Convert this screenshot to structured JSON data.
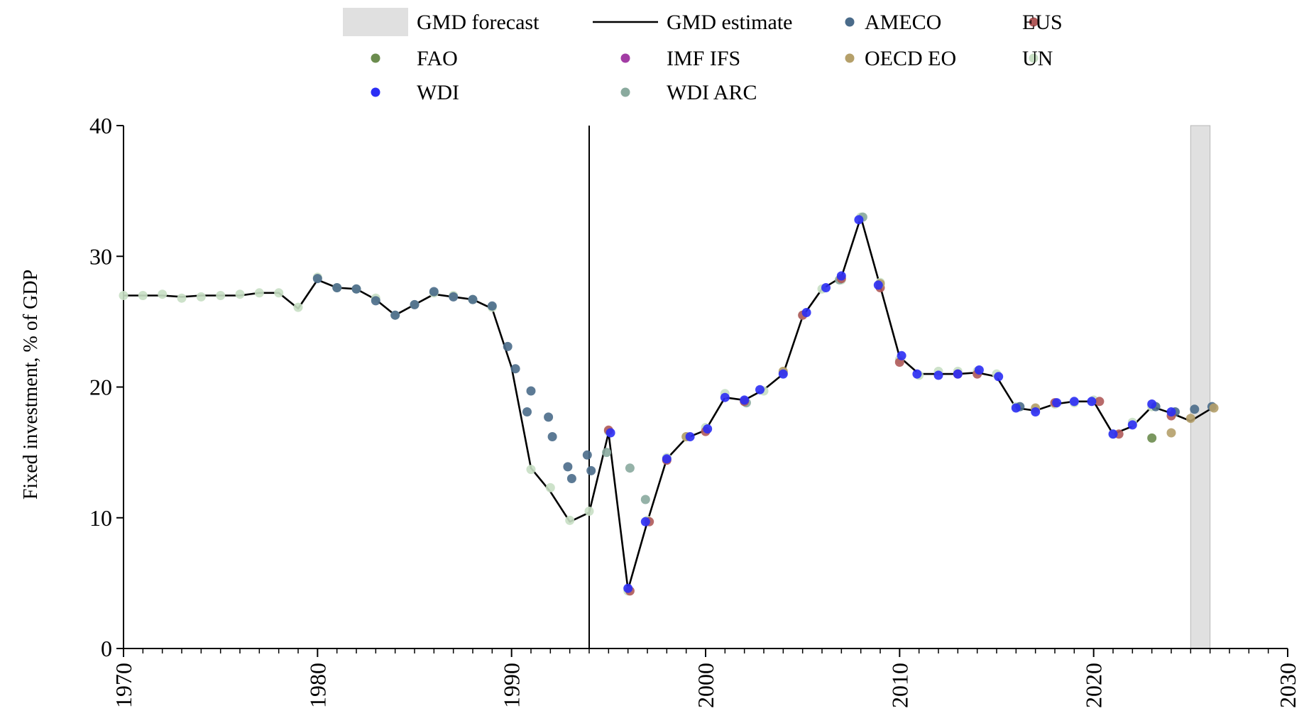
{
  "chart_data": {
    "type": "line",
    "ylabel": "Fixed investment, % of GDP",
    "xlim": [
      1970,
      2030
    ],
    "ylim": [
      0,
      40
    ],
    "x_ticks": [
      "1970",
      "1980",
      "1990",
      "2000",
      "2010",
      "2020",
      "2030"
    ],
    "y_ticks": [
      "0",
      "10",
      "20",
      "30",
      "40"
    ],
    "vertical_marker_x": 1994,
    "forecast_shading": [
      2025,
      2026
    ],
    "grid": false,
    "legend_position": "top",
    "legend": [
      {
        "label": "GMD forecast",
        "kind": "patch",
        "color": "#e0e0e0"
      },
      {
        "label": "GMD estimate",
        "kind": "line",
        "color": "#000000"
      },
      {
        "label": "AMECO",
        "kind": "dot",
        "color": "#4a6b8a"
      },
      {
        "label": "EUS",
        "kind": "dot",
        "color": "#b05a5a"
      },
      {
        "label": "FAO",
        "kind": "dot",
        "color": "#6b8c4e"
      },
      {
        "label": "IMF IFS",
        "kind": "dot",
        "color": "#a23ca4"
      },
      {
        "label": "OECD EO",
        "kind": "dot",
        "color": "#b5a06a"
      },
      {
        "label": "UN",
        "kind": "dot",
        "color": "#c8dfc4"
      },
      {
        "label": "WDI",
        "kind": "dot",
        "color": "#2b2ef5"
      },
      {
        "label": "WDI ARC",
        "kind": "dot",
        "color": "#8aaa9e"
      }
    ],
    "series": [
      {
        "name": "GMD estimate",
        "style": "line",
        "color": "#000000",
        "points": [
          [
            1970,
            27.0
          ],
          [
            1971,
            27.0
          ],
          [
            1972,
            27.0
          ],
          [
            1973,
            26.9
          ],
          [
            1974,
            27.0
          ],
          [
            1975,
            27.0
          ],
          [
            1976,
            27.0
          ],
          [
            1977,
            27.2
          ],
          [
            1978,
            27.2
          ],
          [
            1979,
            26.0
          ],
          [
            1980,
            28.2
          ],
          [
            1981,
            27.6
          ],
          [
            1982,
            27.5
          ],
          [
            1983,
            26.7
          ],
          [
            1984,
            25.5
          ],
          [
            1985,
            26.3
          ],
          [
            1986,
            27.1
          ],
          [
            1987,
            26.9
          ],
          [
            1988,
            26.7
          ],
          [
            1989,
            26.0
          ],
          [
            1990,
            21.5
          ],
          [
            1991,
            13.8
          ],
          [
            1992,
            12.0
          ],
          [
            1993,
            9.7
          ],
          [
            1994,
            10.4
          ],
          [
            1995,
            16.5
          ],
          [
            1996,
            4.5
          ],
          [
            1997,
            9.7
          ],
          [
            1998,
            14.5
          ],
          [
            1999,
            16.1
          ],
          [
            2000,
            16.7
          ],
          [
            2001,
            19.2
          ],
          [
            2002,
            19.0
          ],
          [
            2003,
            19.8
          ],
          [
            2004,
            21.0
          ],
          [
            2005,
            25.4
          ],
          [
            2006,
            27.5
          ],
          [
            2007,
            28.4
          ],
          [
            2008,
            33.0
          ],
          [
            2009,
            27.7
          ],
          [
            2010,
            22.3
          ],
          [
            2011,
            21.0
          ],
          [
            2012,
            21.0
          ],
          [
            2013,
            21.0
          ],
          [
            2014,
            21.1
          ],
          [
            2015,
            20.8
          ],
          [
            2016,
            18.4
          ],
          [
            2017,
            18.2
          ],
          [
            2018,
            18.7
          ],
          [
            2019,
            18.9
          ],
          [
            2020,
            18.9
          ],
          [
            2021,
            16.4
          ],
          [
            2022,
            17.0
          ],
          [
            2023,
            18.5
          ],
          [
            2024,
            18.0
          ],
          [
            2025,
            17.4
          ],
          [
            2026,
            18.3
          ]
        ]
      },
      {
        "name": "UN",
        "style": "dot",
        "color": "#c8dfc4",
        "points": [
          [
            1970,
            27.0
          ],
          [
            1971,
            27.0
          ],
          [
            1972,
            27.1
          ],
          [
            1973,
            26.8
          ],
          [
            1974,
            26.9
          ],
          [
            1975,
            27.0
          ],
          [
            1976,
            27.1
          ],
          [
            1977,
            27.2
          ],
          [
            1978,
            27.2
          ],
          [
            1979,
            26.1
          ],
          [
            1980,
            28.4
          ],
          [
            1981,
            27.6
          ],
          [
            1982,
            27.5
          ],
          [
            1983,
            26.8
          ],
          [
            1984,
            25.5
          ],
          [
            1985,
            26.3
          ],
          [
            1986,
            27.2
          ],
          [
            1987,
            27.0
          ],
          [
            1988,
            26.7
          ],
          [
            1989,
            26.1
          ],
          [
            1991,
            13.7
          ],
          [
            1992,
            12.3
          ],
          [
            1993,
            9.8
          ],
          [
            1994,
            10.5
          ],
          [
            1995,
            16.6
          ],
          [
            1996,
            4.4
          ],
          [
            1997,
            9.8
          ],
          [
            1998,
            14.6
          ],
          [
            1999,
            16.2
          ],
          [
            2000,
            16.9
          ],
          [
            2001,
            19.5
          ],
          [
            2002,
            18.9
          ],
          [
            2003,
            19.7
          ],
          [
            2004,
            21.1
          ],
          [
            2005,
            25.5
          ],
          [
            2006,
            27.5
          ],
          [
            2007,
            28.2
          ],
          [
            2008,
            33.0
          ],
          [
            2009,
            28.0
          ],
          [
            2010,
            22.1
          ],
          [
            2011,
            20.9
          ],
          [
            2012,
            21.2
          ],
          [
            2013,
            21.2
          ],
          [
            2014,
            21.2
          ],
          [
            2015,
            21.0
          ],
          [
            2016,
            18.5
          ],
          [
            2017,
            18.3
          ],
          [
            2018,
            18.7
          ],
          [
            2019,
            18.8
          ],
          [
            2020,
            19.0
          ],
          [
            2021,
            16.4
          ],
          [
            2022,
            17.3
          ],
          [
            2023,
            18.5
          ]
        ]
      },
      {
        "name": "WDI ARC",
        "style": "dot",
        "color": "#8aaa9e",
        "points": [
          [
            1994.9,
            15.0
          ],
          [
            1996.1,
            13.8
          ],
          [
            1996.9,
            11.4
          ],
          [
            2002.1,
            18.8
          ],
          [
            2006.9,
            28.2
          ],
          [
            2008.1,
            33.0
          ]
        ]
      },
      {
        "name": "AMECO",
        "style": "dot",
        "color": "#4a6b8a",
        "points": [
          [
            1980,
            28.3
          ],
          [
            1981,
            27.6
          ],
          [
            1982,
            27.5
          ],
          [
            1983,
            26.6
          ],
          [
            1984,
            25.5
          ],
          [
            1985,
            26.3
          ],
          [
            1986,
            27.3
          ],
          [
            1987,
            26.9
          ],
          [
            1988,
            26.7
          ],
          [
            1989,
            26.2
          ],
          [
            1989.8,
            23.1
          ],
          [
            1990.2,
            21.4
          ],
          [
            1990.8,
            18.1
          ],
          [
            1991.0,
            19.7
          ],
          [
            1991.9,
            17.7
          ],
          [
            1992.1,
            16.2
          ],
          [
            1992.9,
            13.9
          ],
          [
            1993.1,
            13.0
          ],
          [
            1993.9,
            14.8
          ],
          [
            1994.1,
            13.6
          ],
          [
            2016.2,
            18.5
          ],
          [
            2023.2,
            18.5
          ],
          [
            2024.2,
            18.1
          ],
          [
            2025.2,
            18.3
          ],
          [
            2026.1,
            18.5
          ]
        ]
      },
      {
        "name": "EUS",
        "style": "dot",
        "color": "#b05a5a",
        "points": [
          [
            1995,
            16.7
          ],
          [
            1996.1,
            4.4
          ],
          [
            1997.1,
            9.7
          ],
          [
            1998,
            14.4
          ],
          [
            2000,
            16.6
          ],
          [
            2002,
            18.9
          ],
          [
            2005,
            25.5
          ],
          [
            2007,
            28.3
          ],
          [
            2009,
            27.6
          ],
          [
            2010,
            21.9
          ],
          [
            2013,
            21.0
          ],
          [
            2014,
            21.0
          ],
          [
            2018,
            18.8
          ],
          [
            2020.3,
            18.9
          ],
          [
            2021.3,
            16.4
          ],
          [
            2024,
            17.8
          ]
        ]
      },
      {
        "name": "FAO",
        "style": "dot",
        "color": "#6b8c4e",
        "points": [
          [
            2023,
            16.1
          ]
        ]
      },
      {
        "name": "OECD EO",
        "style": "dot",
        "color": "#b5a06a",
        "points": [
          [
            1999,
            16.2
          ],
          [
            2004,
            21.2
          ],
          [
            2009,
            27.9
          ],
          [
            2017,
            18.4
          ],
          [
            2024,
            16.5
          ],
          [
            2025,
            17.6
          ],
          [
            2026.2,
            18.4
          ]
        ]
      },
      {
        "name": "WDI",
        "style": "dot",
        "color": "#2b2ef5",
        "points": [
          [
            1995.1,
            16.5
          ],
          [
            1996.0,
            4.6
          ],
          [
            1996.9,
            9.7
          ],
          [
            1998,
            14.5
          ],
          [
            1999.2,
            16.2
          ],
          [
            2000.1,
            16.8
          ],
          [
            2001.0,
            19.2
          ],
          [
            2002.0,
            19.0
          ],
          [
            2002.8,
            19.8
          ],
          [
            2004.0,
            21.0
          ],
          [
            2005.2,
            25.7
          ],
          [
            2006.2,
            27.6
          ],
          [
            2007.0,
            28.5
          ],
          [
            2007.9,
            32.8
          ],
          [
            2008.9,
            27.8
          ],
          [
            2010.1,
            22.4
          ],
          [
            2010.9,
            21.0
          ],
          [
            2012,
            20.9
          ],
          [
            2013,
            21.0
          ],
          [
            2014.1,
            21.3
          ],
          [
            2015.1,
            20.8
          ],
          [
            2016.0,
            18.4
          ],
          [
            2017.0,
            18.1
          ],
          [
            2018.1,
            18.8
          ],
          [
            2019.0,
            18.9
          ],
          [
            2019.9,
            18.9
          ],
          [
            2021.0,
            16.4
          ],
          [
            2022.0,
            17.1
          ],
          [
            2023.0,
            18.7
          ],
          [
            2024.0,
            18.1
          ]
        ]
      }
    ]
  }
}
